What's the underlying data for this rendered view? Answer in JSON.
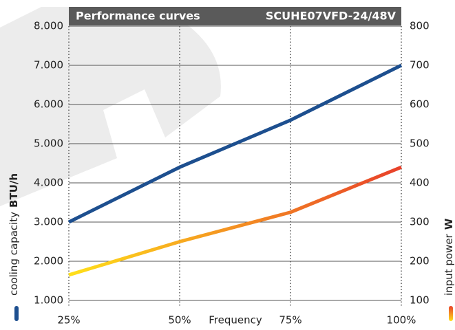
{
  "chart_data": {
    "type": "line",
    "title": "Performance curves",
    "subtitle": "SCUHE07VFD-24/48V",
    "xlabel": "Frequency",
    "x": [
      25,
      50,
      75,
      100
    ],
    "xlim": [
      25,
      100
    ],
    "xticks": [
      {
        "value": 25,
        "label": "25%"
      },
      {
        "value": 50,
        "label": "50%"
      },
      {
        "value": 75,
        "label": "75%"
      },
      {
        "value": 100,
        "label": "100%"
      }
    ],
    "ylim": [
      1000,
      8000
    ],
    "yticks": [
      {
        "value": 1000,
        "label": "1.000"
      },
      {
        "value": 2000,
        "label": "2.000"
      },
      {
        "value": 3000,
        "label": "3.000"
      },
      {
        "value": 4000,
        "label": "4.000"
      },
      {
        "value": 5000,
        "label": "5.000"
      },
      {
        "value": 6000,
        "label": "6.000"
      },
      {
        "value": 7000,
        "label": "7.000"
      },
      {
        "value": 8000,
        "label": "8.000"
      }
    ],
    "y2lim": [
      100,
      800
    ],
    "y2ticks": [
      100,
      200,
      300,
      400,
      500,
      600,
      700,
      800
    ],
    "grid": true,
    "series": [
      {
        "name": "cooling capacity",
        "unit": "BTU/h",
        "color": "#1d4f8f",
        "values": [
          3000,
          4400,
          5600,
          7000
        ]
      },
      {
        "name": "input power",
        "unit": "W",
        "color": [
          "#ffe01a",
          "#e8402a"
        ],
        "axis": "y2",
        "values": [
          165,
          250,
          325,
          440
        ]
      }
    ]
  }
}
